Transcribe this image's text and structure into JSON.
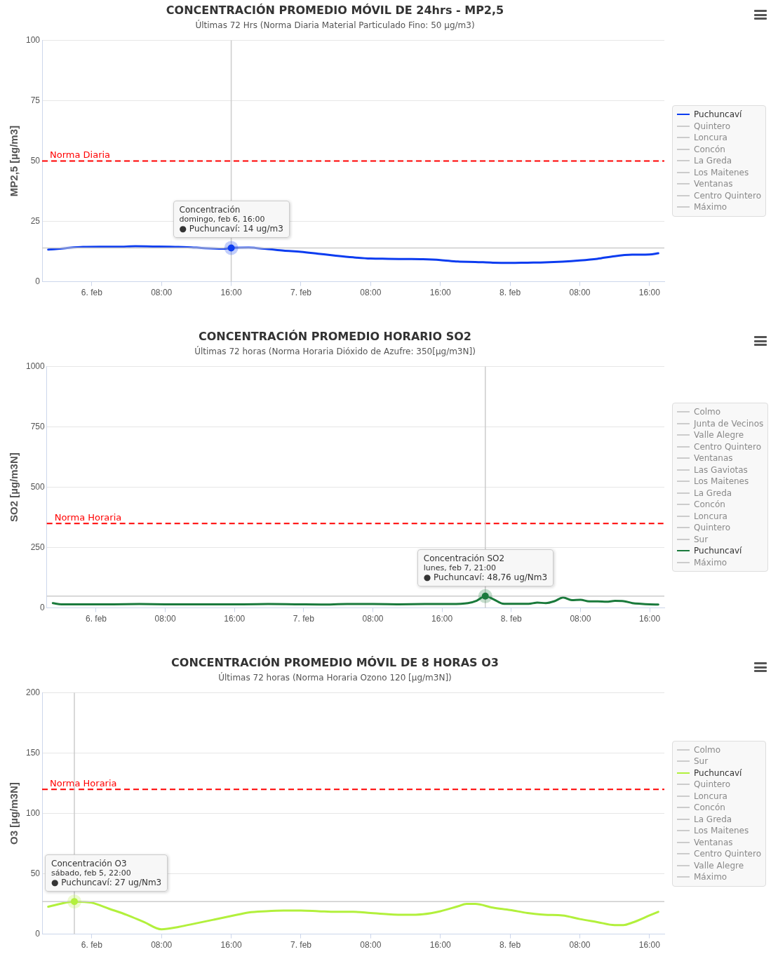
{
  "chart_data": [
    {
      "type": "line",
      "title": "CONCENTRACIÓN PROMEDIO MÓVIL DE 24hrs - MP2,5",
      "subtitle": "Últimas 72 Hrs (Norma Diaria Material Particulado Fino: 50 µg/m3)",
      "ylabel": "MP2,5 [µg/m3]",
      "x": [
        "--02-05T19:00",
        "--02-05T21:00",
        "--02-05T23:00",
        "--02-06T01:00",
        "--02-06T03:00",
        "--02-06T05:00",
        "--02-06T07:00",
        "--02-06T09:00",
        "--02-06T11:00",
        "--02-06T13:00",
        "--02-06T15:00",
        "--02-06T16:00",
        "--02-06T18:00",
        "--02-06T20:00",
        "--02-06T22:00",
        "--02-07T00:00",
        "--02-07T02:00",
        "--02-07T04:00",
        "--02-07T06:00",
        "--02-07T08:00",
        "--02-07T10:00",
        "--02-07T12:00",
        "--02-07T14:00",
        "--02-07T16:00",
        "--02-07T18:00",
        "--02-07T20:00",
        "--02-07T22:00",
        "--02-08T00:00",
        "--02-08T02:00",
        "--02-08T04:00",
        "--02-08T06:00",
        "--02-08T08:00",
        "--02-08T10:00",
        "--02-08T12:00",
        "--02-08T14:00",
        "--02-08T16:00",
        "--02-08T17:00"
      ],
      "series": [
        {
          "name": "Puchuncaví",
          "color": "#0c3cf0",
          "values": [
            13.3,
            13.9,
            14.4,
            14.5,
            14.5,
            14.7,
            14.6,
            14.5,
            14.3,
            13.9,
            13.7,
            14,
            14.1,
            13.6,
            12.9,
            12.4,
            11.6,
            10.8,
            10.1,
            9.6,
            9.5,
            9.4,
            9.3,
            9.0,
            8.4,
            8.2,
            7.9,
            7.8,
            7.9,
            8.0,
            8.3,
            8.8,
            9.5,
            10.6,
            11.2,
            11.3,
            11.8
          ]
        },
        {
          "name": "Quintero",
          "color": "#cccccc",
          "values": [
            null,
            null,
            null,
            null,
            null,
            null,
            null,
            null,
            null,
            null,
            null,
            null,
            null,
            null,
            null,
            null,
            null,
            null,
            null,
            null,
            null,
            null,
            null,
            null,
            null,
            null,
            null,
            null,
            null,
            null,
            null,
            null,
            null,
            null,
            null,
            null,
            null
          ]
        },
        {
          "name": "Loncura",
          "color": "#cccccc",
          "values": [
            null,
            null,
            null,
            null,
            null,
            null,
            null,
            null,
            null,
            null,
            null,
            null,
            null,
            null,
            null,
            null,
            null,
            null,
            null,
            null,
            null,
            null,
            null,
            null,
            null,
            null,
            null,
            null,
            null,
            null,
            null,
            null,
            null,
            null,
            null,
            null,
            null
          ]
        },
        {
          "name": "Concón",
          "color": "#cccccc",
          "values": [
            null,
            null,
            null,
            null,
            null,
            null,
            null,
            null,
            null,
            null,
            null,
            null,
            null,
            null,
            null,
            null,
            null,
            null,
            null,
            null,
            null,
            null,
            null,
            null,
            null,
            null,
            null,
            null,
            null,
            null,
            null,
            null,
            null,
            null,
            null,
            null,
            null
          ]
        },
        {
          "name": "La Greda",
          "color": "#cccccc",
          "values": [
            null,
            null,
            null,
            null,
            null,
            null,
            null,
            null,
            null,
            null,
            null,
            null,
            null,
            null,
            null,
            null,
            null,
            null,
            null,
            null,
            null,
            null,
            null,
            null,
            null,
            null,
            null,
            null,
            null,
            null,
            null,
            null,
            null,
            null,
            null,
            null,
            null
          ]
        },
        {
          "name": "Los Maitenes",
          "color": "#cccccc",
          "values": [
            null,
            null,
            null,
            null,
            null,
            null,
            null,
            null,
            null,
            null,
            null,
            null,
            null,
            null,
            null,
            null,
            null,
            null,
            null,
            null,
            null,
            null,
            null,
            null,
            null,
            null,
            null,
            null,
            null,
            null,
            null,
            null,
            null,
            null,
            null,
            null,
            null
          ]
        },
        {
          "name": "Ventanas",
          "color": "#cccccc",
          "values": [
            null,
            null,
            null,
            null,
            null,
            null,
            null,
            null,
            null,
            null,
            null,
            null,
            null,
            null,
            null,
            null,
            null,
            null,
            null,
            null,
            null,
            null,
            null,
            null,
            null,
            null,
            null,
            null,
            null,
            null,
            null,
            null,
            null,
            null,
            null,
            null,
            null
          ]
        },
        {
          "name": "Centro Quintero",
          "color": "#cccccc",
          "values": [
            null,
            null,
            null,
            null,
            null,
            null,
            null,
            null,
            null,
            null,
            null,
            null,
            null,
            null,
            null,
            null,
            null,
            null,
            null,
            null,
            null,
            null,
            null,
            null,
            null,
            null,
            null,
            null,
            null,
            null,
            null,
            null,
            null,
            null,
            null,
            null,
            null
          ]
        },
        {
          "name": "Máximo",
          "color": "#cccccc",
          "values": [
            null,
            null,
            null,
            null,
            null,
            null,
            null,
            null,
            null,
            null,
            null,
            null,
            null,
            null,
            null,
            null,
            null,
            null,
            null,
            null,
            null,
            null,
            null,
            null,
            null,
            null,
            null,
            null,
            null,
            null,
            null,
            null,
            null,
            null,
            null,
            null,
            null
          ]
        }
      ],
      "xlim": [
        "--02-05T18:18",
        "--02-08T17:42"
      ],
      "xticks": [
        {
          "value": "--02-06T00:00",
          "label": "6. feb"
        },
        {
          "value": "--02-06T08:00",
          "label": "08:00"
        },
        {
          "value": "--02-06T16:00",
          "label": "16:00"
        },
        {
          "value": "--02-07T00:00",
          "label": "7. feb"
        },
        {
          "value": "--02-07T08:00",
          "label": "08:00"
        },
        {
          "value": "--02-07T16:00",
          "label": "16:00"
        },
        {
          "value": "--02-08T00:00",
          "label": "8. feb"
        },
        {
          "value": "--02-08T08:00",
          "label": "08:00"
        },
        {
          "value": "--02-08T16:00",
          "label": "16:00"
        }
      ],
      "ylim": [
        0,
        100
      ],
      "yticks": [
        0,
        25,
        50,
        75,
        100
      ],
      "grid": "y",
      "legend": "right",
      "marker": "none",
      "line_style": "solid",
      "ref_lines": [
        {
          "axis": "y",
          "value": 50,
          "label": "Norma Diaria",
          "color": "#ff0000",
          "line_style": "dashed"
        },
        {
          "axis": "x",
          "value": "--02-06T16:00",
          "color": "#cccccc",
          "line_style": "solid"
        },
        {
          "axis": "y",
          "value": 14,
          "color": "#cccccc",
          "line_style": "solid"
        }
      ],
      "annotations": [
        {
          "text": "Concentración\ndomingo, feb 6, 16:00\n● Puchuncaví: 14 ug/m3",
          "x": "--02-06T16:00",
          "y": 14
        }
      ]
    },
    {
      "type": "line",
      "title": "CONCENTRACIÓN PROMEDIO HORARIO SO2",
      "subtitle": "Últimas 72 horas (Norma Horaria Dióxido de Azufre: 350[µg/m3N])",
      "ylabel": "SO2 [µg/m3N]",
      "x": [
        "--02-05T19:00",
        "--02-05T20:00",
        "--02-05T23:00",
        "--02-06T02:00",
        "--02-06T05:00",
        "--02-06T08:00",
        "--02-06T11:00",
        "--02-06T14:00",
        "--02-06T17:00",
        "--02-06T20:00",
        "--02-06T23:00",
        "--02-07T02:00",
        "--02-07T05:00",
        "--02-07T08:00",
        "--02-07T11:00",
        "--02-07T14:00",
        "--02-07T17:00",
        "--02-07T19:00",
        "--02-07T20:00",
        "--02-07T21:00",
        "--02-07T22:00",
        "--02-07T23:00",
        "--02-08T00:00",
        "--02-08T02:00",
        "--02-08T03:00",
        "--02-08T04:00",
        "--02-08T05:00",
        "--02-08T06:00",
        "--02-08T07:00",
        "--02-08T08:00",
        "--02-08T09:00",
        "--02-08T10:00",
        "--02-08T11:00",
        "--02-08T12:00",
        "--02-08T13:00",
        "--02-08T14:00",
        "--02-08T15:00",
        "--02-08T16:00",
        "--02-08T17:00"
      ],
      "series": [
        {
          "name": "Colmo",
          "color": "#cccccc",
          "values": [
            null,
            null,
            null,
            null,
            null,
            null,
            null,
            null,
            null,
            null,
            null,
            null,
            null,
            null,
            null,
            null,
            null,
            null,
            null,
            null,
            null,
            null,
            null,
            null,
            null,
            null,
            null,
            null,
            null,
            null,
            null,
            null,
            null,
            null,
            null,
            null,
            null,
            null,
            null
          ]
        },
        {
          "name": "Junta de Vecinos",
          "color": "#cccccc",
          "values": [
            null,
            null,
            null,
            null,
            null,
            null,
            null,
            null,
            null,
            null,
            null,
            null,
            null,
            null,
            null,
            null,
            null,
            null,
            null,
            null,
            null,
            null,
            null,
            null,
            null,
            null,
            null,
            null,
            null,
            null,
            null,
            null,
            null,
            null,
            null,
            null,
            null,
            null,
            null
          ]
        },
        {
          "name": "Valle Alegre",
          "color": "#cccccc",
          "values": [
            null,
            null,
            null,
            null,
            null,
            null,
            null,
            null,
            null,
            null,
            null,
            null,
            null,
            null,
            null,
            null,
            null,
            null,
            null,
            null,
            null,
            null,
            null,
            null,
            null,
            null,
            null,
            null,
            null,
            null,
            null,
            null,
            null,
            null,
            null,
            null,
            null,
            null,
            null
          ]
        },
        {
          "name": "Centro Quintero",
          "color": "#cccccc",
          "values": [
            null,
            null,
            null,
            null,
            null,
            null,
            null,
            null,
            null,
            null,
            null,
            null,
            null,
            null,
            null,
            null,
            null,
            null,
            null,
            null,
            null,
            null,
            null,
            null,
            null,
            null,
            null,
            null,
            null,
            null,
            null,
            null,
            null,
            null,
            null,
            null,
            null,
            null,
            null
          ]
        },
        {
          "name": "Ventanas",
          "color": "#cccccc",
          "values": [
            null,
            null,
            null,
            null,
            null,
            null,
            null,
            null,
            null,
            null,
            null,
            null,
            null,
            null,
            null,
            null,
            null,
            null,
            null,
            null,
            null,
            null,
            null,
            null,
            null,
            null,
            null,
            null,
            null,
            null,
            null,
            null,
            null,
            null,
            null,
            null,
            null,
            null,
            null
          ]
        },
        {
          "name": "Las Gaviotas",
          "color": "#cccccc",
          "values": [
            null,
            null,
            null,
            null,
            null,
            null,
            null,
            null,
            null,
            null,
            null,
            null,
            null,
            null,
            null,
            null,
            null,
            null,
            null,
            null,
            null,
            null,
            null,
            null,
            null,
            null,
            null,
            null,
            null,
            null,
            null,
            null,
            null,
            null,
            null,
            null,
            null,
            null,
            null
          ]
        },
        {
          "name": "Los Maitenes",
          "color": "#cccccc",
          "values": [
            null,
            null,
            null,
            null,
            null,
            null,
            null,
            null,
            null,
            null,
            null,
            null,
            null,
            null,
            null,
            null,
            null,
            null,
            null,
            null,
            null,
            null,
            null,
            null,
            null,
            null,
            null,
            null,
            null,
            null,
            null,
            null,
            null,
            null,
            null,
            null,
            null,
            null,
            null
          ]
        },
        {
          "name": "La Greda",
          "color": "#cccccc",
          "values": [
            null,
            null,
            null,
            null,
            null,
            null,
            null,
            null,
            null,
            null,
            null,
            null,
            null,
            null,
            null,
            null,
            null,
            null,
            null,
            null,
            null,
            null,
            null,
            null,
            null,
            null,
            null,
            null,
            null,
            null,
            null,
            null,
            null,
            null,
            null,
            null,
            null,
            null,
            null
          ]
        },
        {
          "name": "Concón",
          "color": "#cccccc",
          "values": [
            null,
            null,
            null,
            null,
            null,
            null,
            null,
            null,
            null,
            null,
            null,
            null,
            null,
            null,
            null,
            null,
            null,
            null,
            null,
            null,
            null,
            null,
            null,
            null,
            null,
            null,
            null,
            null,
            null,
            null,
            null,
            null,
            null,
            null,
            null,
            null,
            null,
            null,
            null
          ]
        },
        {
          "name": "Loncura",
          "color": "#cccccc",
          "values": [
            null,
            null,
            null,
            null,
            null,
            null,
            null,
            null,
            null,
            null,
            null,
            null,
            null,
            null,
            null,
            null,
            null,
            null,
            null,
            null,
            null,
            null,
            null,
            null,
            null,
            null,
            null,
            null,
            null,
            null,
            null,
            null,
            null,
            null,
            null,
            null,
            null,
            null,
            null
          ]
        },
        {
          "name": "Quintero",
          "color": "#cccccc",
          "values": [
            null,
            null,
            null,
            null,
            null,
            null,
            null,
            null,
            null,
            null,
            null,
            null,
            null,
            null,
            null,
            null,
            null,
            null,
            null,
            null,
            null,
            null,
            null,
            null,
            null,
            null,
            null,
            null,
            null,
            null,
            null,
            null,
            null,
            null,
            null,
            null,
            null,
            null,
            null
          ]
        },
        {
          "name": "Sur",
          "color": "#cccccc",
          "values": [
            null,
            null,
            null,
            null,
            null,
            null,
            null,
            null,
            null,
            null,
            null,
            null,
            null,
            null,
            null,
            null,
            null,
            null,
            null,
            null,
            null,
            null,
            null,
            null,
            null,
            null,
            null,
            null,
            null,
            null,
            null,
            null,
            null,
            null,
            null,
            null,
            null,
            null,
            null
          ]
        },
        {
          "name": "Puchuncaví",
          "color": "#1a7a3c",
          "values": [
            20,
            15,
            15,
            15,
            16,
            15,
            15,
            15,
            15,
            16,
            15,
            14,
            16,
            16,
            15,
            16,
            16,
            20,
            30,
            48.76,
            35,
            18,
            17,
            17,
            22,
            20,
            28,
            43,
            32,
            34,
            27,
            27,
            26,
            29,
            28,
            20,
            17,
            15,
            14
          ]
        },
        {
          "name": "Máximo",
          "color": "#cccccc",
          "values": [
            null,
            null,
            null,
            null,
            null,
            null,
            null,
            null,
            null,
            null,
            null,
            null,
            null,
            null,
            null,
            null,
            null,
            null,
            null,
            null,
            null,
            null,
            null,
            null,
            null,
            null,
            null,
            null,
            null,
            null,
            null,
            null,
            null,
            null,
            null,
            null,
            null,
            null,
            null
          ]
        }
      ],
      "xlim": [
        "--02-05T18:18",
        "--02-08T17:42"
      ],
      "xticks": [
        {
          "value": "--02-06T00:00",
          "label": "6. feb"
        },
        {
          "value": "--02-06T08:00",
          "label": "08:00"
        },
        {
          "value": "--02-06T16:00",
          "label": "16:00"
        },
        {
          "value": "--02-07T00:00",
          "label": "7. feb"
        },
        {
          "value": "--02-07T08:00",
          "label": "08:00"
        },
        {
          "value": "--02-07T16:00",
          "label": "16:00"
        },
        {
          "value": "--02-08T00:00",
          "label": "8. feb"
        },
        {
          "value": "--02-08T08:00",
          "label": "08:00"
        },
        {
          "value": "--02-08T16:00",
          "label": "16:00"
        }
      ],
      "ylim": [
        0,
        1000
      ],
      "yticks": [
        0,
        250,
        500,
        750,
        1000
      ],
      "grid": "y",
      "legend": "right",
      "marker": "none",
      "line_style": "solid",
      "ref_lines": [
        {
          "axis": "y",
          "value": 350,
          "label": "Norma Horaria",
          "color": "#ff0000",
          "line_style": "dashed"
        },
        {
          "axis": "x",
          "value": "--02-07T21:00",
          "color": "#cccccc",
          "line_style": "solid"
        },
        {
          "axis": "y",
          "value": 48.76,
          "color": "#cccccc",
          "line_style": "solid"
        }
      ],
      "annotations": [
        {
          "text": "Concentración SO2\nlunes, feb 7, 21:00\n● Puchuncaví: 48,76 ug/Nm3",
          "x": "--02-07T21:00",
          "y": 48.76
        }
      ]
    },
    {
      "type": "line",
      "title": "CONCENTRACIÓN PROMEDIO MÓVIL DE 8 HORAS O3",
      "subtitle": "Últimas 72 horas (Norma Horaria Ozono 120 [µg/m3N])",
      "ylabel": "O3 [µg/m3N]",
      "x": [
        "--02-05T19:00",
        "--02-05T22:00",
        "--02-06T00:00",
        "--02-06T02:00",
        "--02-06T04:00",
        "--02-06T06:00",
        "--02-06T08:00",
        "--02-06T10:00",
        "--02-06T12:00",
        "--02-06T14:00",
        "--02-06T16:00",
        "--02-06T18:00",
        "--02-06T20:00",
        "--02-06T22:00",
        "--02-07T00:00",
        "--02-07T02:00",
        "--02-07T04:00",
        "--02-07T06:00",
        "--02-07T08:00",
        "--02-07T10:00",
        "--02-07T12:00",
        "--02-07T14:00",
        "--02-07T16:00",
        "--02-07T18:00",
        "--02-07T19:00",
        "--02-07T20:00",
        "--02-07T22:00",
        "--02-08T00:00",
        "--02-08T02:00",
        "--02-08T04:00",
        "--02-08T06:00",
        "--02-08T08:00",
        "--02-08T10:00",
        "--02-08T12:00",
        "--02-08T13:00",
        "--02-08T14:00",
        "--02-08T16:00",
        "--02-08T17:00"
      ],
      "series": [
        {
          "name": "Colmo",
          "color": "#cccccc",
          "values": [
            null,
            null,
            null,
            null,
            null,
            null,
            null,
            null,
            null,
            null,
            null,
            null,
            null,
            null,
            null,
            null,
            null,
            null,
            null,
            null,
            null,
            null,
            null,
            null,
            null,
            null,
            null,
            null,
            null,
            null,
            null,
            null,
            null,
            null,
            null,
            null,
            null,
            null
          ]
        },
        {
          "name": "Sur",
          "color": "#cccccc",
          "values": [
            null,
            null,
            null,
            null,
            null,
            null,
            null,
            null,
            null,
            null,
            null,
            null,
            null,
            null,
            null,
            null,
            null,
            null,
            null,
            null,
            null,
            null,
            null,
            null,
            null,
            null,
            null,
            null,
            null,
            null,
            null,
            null,
            null,
            null,
            null,
            null,
            null,
            null
          ]
        },
        {
          "name": "Puchuncaví",
          "color": "#b2f03c",
          "values": [
            22.7,
            27,
            26,
            21,
            16,
            10,
            4,
            6,
            9,
            12,
            15,
            18,
            19,
            19.5,
            19.5,
            19,
            18.5,
            18.5,
            17.5,
            16.5,
            16,
            16.5,
            19,
            23,
            25,
            25,
            22,
            20,
            17.5,
            16,
            15.5,
            12.5,
            10,
            7.5,
            7.5,
            9.5,
            15.5,
            18.5
          ]
        },
        {
          "name": "Quintero",
          "color": "#cccccc",
          "values": [
            null,
            null,
            null,
            null,
            null,
            null,
            null,
            null,
            null,
            null,
            null,
            null,
            null,
            null,
            null,
            null,
            null,
            null,
            null,
            null,
            null,
            null,
            null,
            null,
            null,
            null,
            null,
            null,
            null,
            null,
            null,
            null,
            null,
            null,
            null,
            null,
            null,
            null
          ]
        },
        {
          "name": "Loncura",
          "color": "#cccccc",
          "values": [
            null,
            null,
            null,
            null,
            null,
            null,
            null,
            null,
            null,
            null,
            null,
            null,
            null,
            null,
            null,
            null,
            null,
            null,
            null,
            null,
            null,
            null,
            null,
            null,
            null,
            null,
            null,
            null,
            null,
            null,
            null,
            null,
            null,
            null,
            null,
            null,
            null,
            null
          ]
        },
        {
          "name": "Concón",
          "color": "#cccccc",
          "values": [
            null,
            null,
            null,
            null,
            null,
            null,
            null,
            null,
            null,
            null,
            null,
            null,
            null,
            null,
            null,
            null,
            null,
            null,
            null,
            null,
            null,
            null,
            null,
            null,
            null,
            null,
            null,
            null,
            null,
            null,
            null,
            null,
            null,
            null,
            null,
            null,
            null,
            null
          ]
        },
        {
          "name": "La Greda",
          "color": "#cccccc",
          "values": [
            null,
            null,
            null,
            null,
            null,
            null,
            null,
            null,
            null,
            null,
            null,
            null,
            null,
            null,
            null,
            null,
            null,
            null,
            null,
            null,
            null,
            null,
            null,
            null,
            null,
            null,
            null,
            null,
            null,
            null,
            null,
            null,
            null,
            null,
            null,
            null,
            null,
            null
          ]
        },
        {
          "name": "Los Maitenes",
          "color": "#cccccc",
          "values": [
            null,
            null,
            null,
            null,
            null,
            null,
            null,
            null,
            null,
            null,
            null,
            null,
            null,
            null,
            null,
            null,
            null,
            null,
            null,
            null,
            null,
            null,
            null,
            null,
            null,
            null,
            null,
            null,
            null,
            null,
            null,
            null,
            null,
            null,
            null,
            null,
            null,
            null
          ]
        },
        {
          "name": "Ventanas",
          "color": "#cccccc",
          "values": [
            null,
            null,
            null,
            null,
            null,
            null,
            null,
            null,
            null,
            null,
            null,
            null,
            null,
            null,
            null,
            null,
            null,
            null,
            null,
            null,
            null,
            null,
            null,
            null,
            null,
            null,
            null,
            null,
            null,
            null,
            null,
            null,
            null,
            null,
            null,
            null,
            null,
            null
          ]
        },
        {
          "name": "Centro Quintero",
          "color": "#cccccc",
          "values": [
            null,
            null,
            null,
            null,
            null,
            null,
            null,
            null,
            null,
            null,
            null,
            null,
            null,
            null,
            null,
            null,
            null,
            null,
            null,
            null,
            null,
            null,
            null,
            null,
            null,
            null,
            null,
            null,
            null,
            null,
            null,
            null,
            null,
            null,
            null,
            null,
            null,
            null
          ]
        },
        {
          "name": "Valle Alegre",
          "color": "#cccccc",
          "values": [
            null,
            null,
            null,
            null,
            null,
            null,
            null,
            null,
            null,
            null,
            null,
            null,
            null,
            null,
            null,
            null,
            null,
            null,
            null,
            null,
            null,
            null,
            null,
            null,
            null,
            null,
            null,
            null,
            null,
            null,
            null,
            null,
            null,
            null,
            null,
            null,
            null,
            null
          ]
        },
        {
          "name": "Máximo",
          "color": "#cccccc",
          "values": [
            null,
            null,
            null,
            null,
            null,
            null,
            null,
            null,
            null,
            null,
            null,
            null,
            null,
            null,
            null,
            null,
            null,
            null,
            null,
            null,
            null,
            null,
            null,
            null,
            null,
            null,
            null,
            null,
            null,
            null,
            null,
            null,
            null,
            null,
            null,
            null,
            null,
            null
          ]
        }
      ],
      "xlim": [
        "--02-05T18:18",
        "--02-08T17:42"
      ],
      "xticks": [
        {
          "value": "--02-06T00:00",
          "label": "6. feb"
        },
        {
          "value": "--02-06T08:00",
          "label": "08:00"
        },
        {
          "value": "--02-06T16:00",
          "label": "16:00"
        },
        {
          "value": "--02-07T00:00",
          "label": "7. feb"
        },
        {
          "value": "--02-07T08:00",
          "label": "08:00"
        },
        {
          "value": "--02-07T16:00",
          "label": "16:00"
        },
        {
          "value": "--02-08T00:00",
          "label": "8. feb"
        },
        {
          "value": "--02-08T08:00",
          "label": "08:00"
        },
        {
          "value": "--02-08T16:00",
          "label": "16:00"
        }
      ],
      "ylim": [
        0,
        200
      ],
      "yticks": [
        0,
        50,
        100,
        150,
        200
      ],
      "grid": "y",
      "legend": "right",
      "marker": "none",
      "line_style": "solid",
      "ref_lines": [
        {
          "axis": "y",
          "value": 120,
          "label": "Norma Horaria",
          "color": "#ff0000",
          "line_style": "dashed"
        },
        {
          "axis": "x",
          "value": "--02-05T22:00",
          "color": "#cccccc",
          "line_style": "solid"
        },
        {
          "axis": "y",
          "value": 27,
          "color": "#cccccc",
          "line_style": "solid"
        }
      ],
      "annotations": [
        {
          "text": "Concentración O3\nsábado, feb 5, 22:00\n● Puchuncaví: 27 ug/Nm3",
          "x": "--02-05T22:00",
          "y": 27
        }
      ]
    }
  ]
}
